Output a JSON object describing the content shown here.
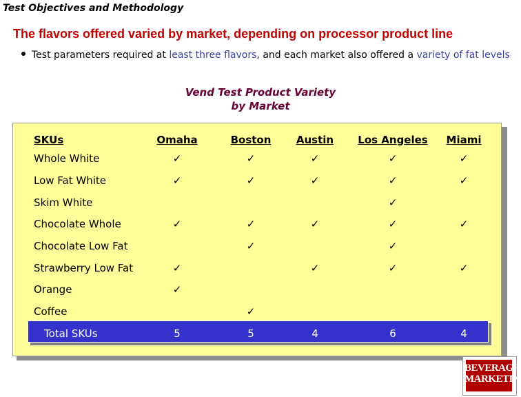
{
  "section_title": "Test Objectives and Methodology",
  "headline": "The flavors offered varied by market, depending on processor product line",
  "bullet": {
    "part1": "Test parameters required at ",
    "hl1": "least three flavors",
    "part2": ", and each market also offered a ",
    "hl2": "variety of fat levels"
  },
  "table_title": {
    "line1": "Vend Test Product Variety",
    "line2": "by Market"
  },
  "table": {
    "row_header": "SKUs",
    "columns": [
      "Omaha",
      "Boston",
      "Austin",
      "Los Angeles",
      "Miami"
    ],
    "check_symbol": "✓",
    "rows": [
      {
        "label": "Whole White",
        "checks": [
          true,
          true,
          true,
          true,
          true
        ]
      },
      {
        "label": "Low Fat White",
        "checks": [
          true,
          true,
          true,
          true,
          true
        ]
      },
      {
        "label": "Skim White",
        "checks": [
          false,
          false,
          false,
          true,
          false
        ]
      },
      {
        "label": "Chocolate Whole",
        "checks": [
          true,
          true,
          true,
          true,
          true
        ]
      },
      {
        "label": "Chocolate Low Fat",
        "checks": [
          false,
          true,
          false,
          true,
          false
        ]
      },
      {
        "label": "Strawberry Low Fat",
        "checks": [
          true,
          false,
          true,
          true,
          true
        ]
      },
      {
        "label": "Orange",
        "checks": [
          true,
          false,
          false,
          false,
          false
        ]
      },
      {
        "label": "Coffee",
        "checks": [
          false,
          true,
          false,
          false,
          false
        ]
      }
    ],
    "total": {
      "label": "Total SKUs",
      "values": [
        "5",
        "5",
        "4",
        "6",
        "4"
      ]
    }
  },
  "logo": {
    "line1": "BEVERAGE",
    "line2": "MARKETING"
  },
  "colors": {
    "headline": "#c00000",
    "highlight": "#3b3fa0",
    "panel": "#ffff99",
    "total_bar": "#3333cc",
    "table_title": "#660033"
  }
}
